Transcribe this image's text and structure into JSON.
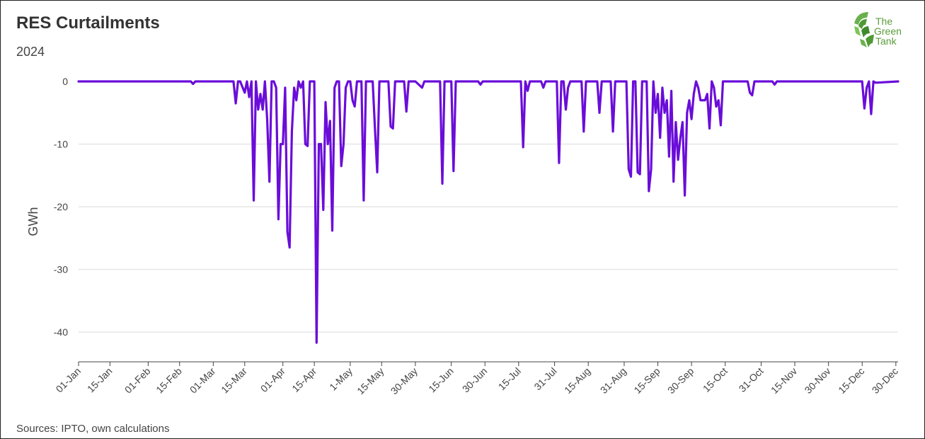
{
  "header": {
    "title": "RES Curtailments",
    "subtitle": "2024"
  },
  "footer": {
    "source": "Sources: IPTO, own calculations"
  },
  "logo": {
    "line1": "The",
    "line2": "Green",
    "line3": "Tank"
  },
  "colors": {
    "line": "#6a0dd9",
    "grid": "#e6e6e6",
    "logo_green": "#5a9c3a"
  },
  "chart_data": {
    "type": "line",
    "title": "RES Curtailments",
    "subtitle": "2024",
    "xlabel": "",
    "ylabel": "GWh",
    "ylim": [
      -45,
      0
    ],
    "yticks": [
      0,
      -10,
      -20,
      -30,
      -40
    ],
    "grid": "horizontal",
    "legend": "none",
    "x_ticks": [
      {
        "label": "01-Jan",
        "date": "2024-01-01"
      },
      {
        "label": "15-Jan",
        "date": "2024-01-15"
      },
      {
        "label": "01-Feb",
        "date": "2024-02-01"
      },
      {
        "label": "15-Feb",
        "date": "2024-02-15"
      },
      {
        "label": "01-Mar",
        "date": "2024-03-01"
      },
      {
        "label": "15-Mar",
        "date": "2024-03-15"
      },
      {
        "label": "01-Apr",
        "date": "2024-04-01"
      },
      {
        "label": "15-Apr",
        "date": "2024-04-15"
      },
      {
        "label": "1-May",
        "date": "2024-05-01"
      },
      {
        "label": "15-May",
        "date": "2024-05-15"
      },
      {
        "label": "30-May",
        "date": "2024-05-30"
      },
      {
        "label": "15-Jun",
        "date": "2024-06-15"
      },
      {
        "label": "30-Jun",
        "date": "2024-06-30"
      },
      {
        "label": "15-Jul",
        "date": "2024-07-15"
      },
      {
        "label": "31-Jul",
        "date": "2024-07-31"
      },
      {
        "label": "15-Aug",
        "date": "2024-08-15"
      },
      {
        "label": "31-Aug",
        "date": "2024-08-31"
      },
      {
        "label": "15-Sep",
        "date": "2024-09-15"
      },
      {
        "label": "30-Sep",
        "date": "2024-09-30"
      },
      {
        "label": "15-Oct",
        "date": "2024-10-15"
      },
      {
        "label": "31-Oct",
        "date": "2024-10-31"
      },
      {
        "label": "15-Nov",
        "date": "2024-11-15"
      },
      {
        "label": "30-Nov",
        "date": "2024-11-30"
      },
      {
        "label": "15-Dec",
        "date": "2024-12-15"
      },
      {
        "label": "30-Dec",
        "date": "2024-12-30"
      }
    ],
    "series": [
      {
        "values": [
          [
            "2024-01-01",
            0
          ],
          [
            "2024-02-20",
            0
          ],
          [
            "2024-02-21",
            -0.4
          ],
          [
            "2024-02-22",
            0
          ],
          [
            "2024-03-10",
            0
          ],
          [
            "2024-03-11",
            -3.5
          ],
          [
            "2024-03-12",
            0
          ],
          [
            "2024-03-13",
            0
          ],
          [
            "2024-03-15",
            -1.8
          ],
          [
            "2024-03-16",
            0
          ],
          [
            "2024-03-17",
            -2.5
          ],
          [
            "2024-03-18",
            0
          ],
          [
            "2024-03-19",
            -19
          ],
          [
            "2024-03-20",
            0
          ],
          [
            "2024-03-21",
            -4.5
          ],
          [
            "2024-03-22",
            -2
          ],
          [
            "2024-03-23",
            -4.5
          ],
          [
            "2024-03-24",
            0
          ],
          [
            "2024-03-25",
            -6
          ],
          [
            "2024-03-26",
            -16
          ],
          [
            "2024-03-27",
            0
          ],
          [
            "2024-03-28",
            0
          ],
          [
            "2024-03-29",
            -1
          ],
          [
            "2024-03-30",
            -22
          ],
          [
            "2024-03-31",
            -10
          ],
          [
            "2024-04-01",
            -10
          ],
          [
            "2024-04-02",
            -1
          ],
          [
            "2024-04-03",
            -24
          ],
          [
            "2024-04-04",
            -26.5
          ],
          [
            "2024-04-05",
            -8
          ],
          [
            "2024-04-06",
            -1
          ],
          [
            "2024-04-07",
            -3
          ],
          [
            "2024-04-08",
            0
          ],
          [
            "2024-04-09",
            -1
          ],
          [
            "2024-04-10",
            0
          ],
          [
            "2024-04-11",
            -10
          ],
          [
            "2024-04-12",
            -10.3
          ],
          [
            "2024-04-13",
            0
          ],
          [
            "2024-04-14",
            0
          ],
          [
            "2024-04-15",
            0
          ],
          [
            "2024-04-16",
            -41.7
          ],
          [
            "2024-04-17",
            -10
          ],
          [
            "2024-04-18",
            -10
          ],
          [
            "2024-04-19",
            -20.5
          ],
          [
            "2024-04-20",
            -3.3
          ],
          [
            "2024-04-21",
            -10
          ],
          [
            "2024-04-22",
            -6.3
          ],
          [
            "2024-04-23",
            -23.8
          ],
          [
            "2024-04-24",
            -1
          ],
          [
            "2024-04-25",
            0
          ],
          [
            "2024-04-26",
            0
          ],
          [
            "2024-04-27",
            -13.5
          ],
          [
            "2024-04-28",
            -10
          ],
          [
            "2024-04-29",
            -1
          ],
          [
            "2024-04-30",
            0
          ],
          [
            "2024-05-01",
            0
          ],
          [
            "2024-05-02",
            -3
          ],
          [
            "2024-05-03",
            -4
          ],
          [
            "2024-05-04",
            0
          ],
          [
            "2024-05-05",
            0
          ],
          [
            "2024-05-06",
            0
          ],
          [
            "2024-05-07",
            -19
          ],
          [
            "2024-05-08",
            0
          ],
          [
            "2024-05-09",
            0
          ],
          [
            "2024-05-10",
            0
          ],
          [
            "2024-05-11",
            0
          ],
          [
            "2024-05-12",
            -7.5
          ],
          [
            "2024-05-13",
            -14.5
          ],
          [
            "2024-05-14",
            0
          ],
          [
            "2024-05-15",
            0
          ],
          [
            "2024-05-16",
            0
          ],
          [
            "2024-05-17",
            0
          ],
          [
            "2024-05-18",
            0
          ],
          [
            "2024-05-19",
            -7.2
          ],
          [
            "2024-05-20",
            -7.5
          ],
          [
            "2024-05-21",
            0
          ],
          [
            "2024-05-22",
            0
          ],
          [
            "2024-05-23",
            0
          ],
          [
            "2024-05-24",
            0
          ],
          [
            "2024-05-25",
            0
          ],
          [
            "2024-05-26",
            -4.8
          ],
          [
            "2024-05-27",
            0
          ],
          [
            "2024-05-28",
            0
          ],
          [
            "2024-05-29",
            0
          ],
          [
            "2024-05-30",
            0
          ],
          [
            "2024-06-02",
            -1
          ],
          [
            "2024-06-03",
            0
          ],
          [
            "2024-06-10",
            0
          ],
          [
            "2024-06-11",
            -16.3
          ],
          [
            "2024-06-12",
            0
          ],
          [
            "2024-06-13",
            0
          ],
          [
            "2024-06-14",
            0
          ],
          [
            "2024-06-15",
            0
          ],
          [
            "2024-06-16",
            -14.3
          ],
          [
            "2024-06-17",
            0
          ],
          [
            "2024-06-27",
            0
          ],
          [
            "2024-06-28",
            -0.5
          ],
          [
            "2024-06-29",
            0
          ],
          [
            "2024-07-16",
            0
          ],
          [
            "2024-07-17",
            -10.5
          ],
          [
            "2024-07-18",
            0
          ],
          [
            "2024-07-19",
            -1.5
          ],
          [
            "2024-07-20",
            0
          ],
          [
            "2024-07-25",
            0
          ],
          [
            "2024-07-26",
            -1
          ],
          [
            "2024-07-27",
            0
          ],
          [
            "2024-08-01",
            0
          ],
          [
            "2024-08-02",
            -13
          ],
          [
            "2024-08-03",
            0
          ],
          [
            "2024-08-04",
            0
          ],
          [
            "2024-08-05",
            -4.5
          ],
          [
            "2024-08-06",
            -1
          ],
          [
            "2024-08-07",
            0
          ],
          [
            "2024-08-12",
            0
          ],
          [
            "2024-08-13",
            -8
          ],
          [
            "2024-08-14",
            0
          ],
          [
            "2024-08-19",
            0
          ],
          [
            "2024-08-20",
            -5
          ],
          [
            "2024-08-21",
            0
          ],
          [
            "2024-08-25",
            0
          ],
          [
            "2024-08-26",
            -8
          ],
          [
            "2024-08-27",
            0
          ],
          [
            "2024-09-01",
            0
          ],
          [
            "2024-09-02",
            -14
          ],
          [
            "2024-09-03",
            -15.2
          ],
          [
            "2024-09-04",
            0
          ],
          [
            "2024-09-05",
            0
          ],
          [
            "2024-09-06",
            -14.5
          ],
          [
            "2024-09-07",
            -14.8
          ],
          [
            "2024-09-08",
            0
          ],
          [
            "2024-09-09",
            0
          ],
          [
            "2024-09-10",
            0
          ],
          [
            "2024-09-11",
            -17.5
          ],
          [
            "2024-09-12",
            -14
          ],
          [
            "2024-09-13",
            0
          ],
          [
            "2024-09-14",
            -5
          ],
          [
            "2024-09-15",
            -2
          ],
          [
            "2024-09-16",
            -9
          ],
          [
            "2024-09-17",
            -1
          ],
          [
            "2024-09-18",
            -5
          ],
          [
            "2024-09-19",
            -3
          ],
          [
            "2024-09-20",
            -12
          ],
          [
            "2024-09-21",
            -1.5
          ],
          [
            "2024-09-22",
            -16
          ],
          [
            "2024-09-23",
            -6.5
          ],
          [
            "2024-09-24",
            -12.5
          ],
          [
            "2024-09-25",
            -9
          ],
          [
            "2024-09-26",
            -6.5
          ],
          [
            "2024-09-27",
            -18.2
          ],
          [
            "2024-09-28",
            -5
          ],
          [
            "2024-09-29",
            -3
          ],
          [
            "2024-09-30",
            -6
          ],
          [
            "2024-10-01",
            -2
          ],
          [
            "2024-10-02",
            0
          ],
          [
            "2024-10-03",
            -1
          ],
          [
            "2024-10-04",
            -3
          ],
          [
            "2024-10-05",
            -3
          ],
          [
            "2024-10-06",
            -3
          ],
          [
            "2024-10-07",
            -2
          ],
          [
            "2024-10-08",
            -7.5
          ],
          [
            "2024-10-09",
            0
          ],
          [
            "2024-10-10",
            -1
          ],
          [
            "2024-10-11",
            -4
          ],
          [
            "2024-10-12",
            -3
          ],
          [
            "2024-10-13",
            -7
          ],
          [
            "2024-10-14",
            0
          ],
          [
            "2024-10-15",
            0
          ],
          [
            "2024-10-25",
            0
          ],
          [
            "2024-10-26",
            -1.8
          ],
          [
            "2024-10-27",
            -2.2
          ],
          [
            "2024-10-28",
            0
          ],
          [
            "2024-11-05",
            0
          ],
          [
            "2024-11-06",
            -0.5
          ],
          [
            "2024-11-07",
            0
          ],
          [
            "2024-12-15",
            0
          ],
          [
            "2024-12-16",
            -4.3
          ],
          [
            "2024-12-17",
            -1
          ],
          [
            "2024-12-18",
            0
          ],
          [
            "2024-12-19",
            -5.2
          ],
          [
            "2024-12-20",
            0
          ],
          [
            "2024-12-21",
            -0.2
          ],
          [
            "2024-12-31",
            0
          ]
        ]
      }
    ]
  }
}
